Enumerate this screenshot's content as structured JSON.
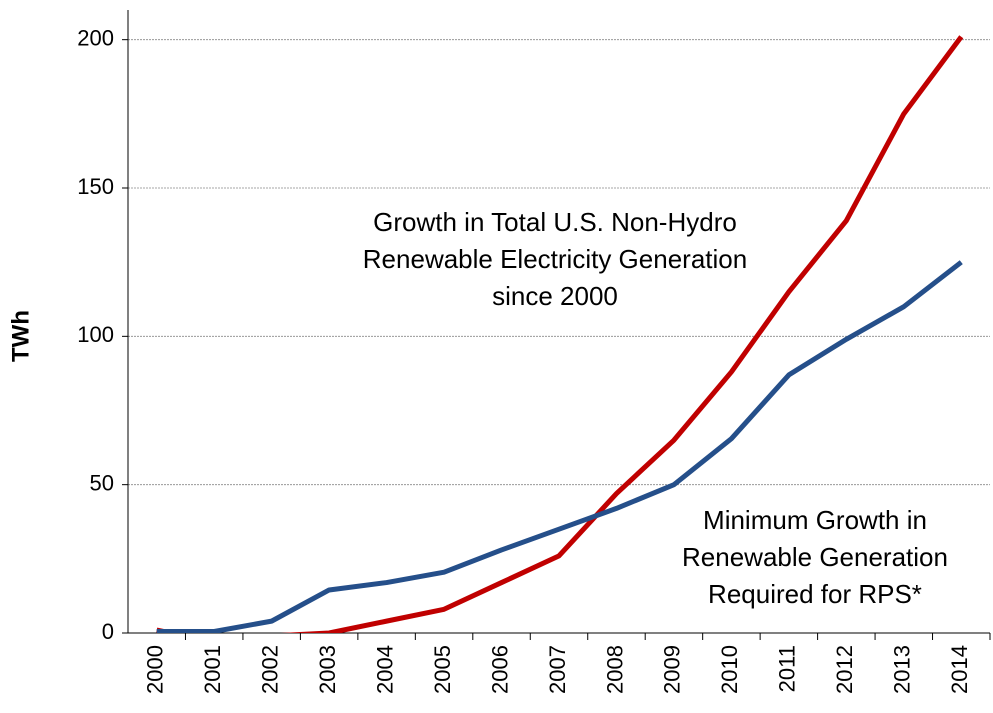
{
  "chart_data": {
    "type": "line",
    "y_label": "TWh",
    "categories": [
      "2000",
      "2001",
      "2002",
      "2003",
      "2004",
      "2005",
      "2006",
      "2007",
      "2008",
      "2009",
      "2010",
      "2011",
      "2012",
      "2013",
      "2014"
    ],
    "series": [
      {
        "color": "#c00000",
        "values": [
          1,
          -3,
          -1,
          0,
          4,
          8,
          17,
          26,
          47,
          65,
          88,
          115,
          139,
          175,
          201
        ]
      },
      {
        "color": "#254f8a",
        "values": [
          0.5,
          0.5,
          4,
          14.5,
          17,
          20.5,
          28,
          35,
          42,
          50,
          65.5,
          87,
          99,
          110,
          125
        ]
      }
    ],
    "annotations": [
      {
        "color": "#c00000",
        "lines": [
          "Growth in Total U.S. Non-Hydro",
          "Renewable Electricity Generation",
          "since 2000"
        ]
      },
      {
        "color": "#254f8a",
        "lines": [
          "Minimum Growth in",
          "Renewable Generation",
          "Required for RPS*"
        ]
      }
    ],
    "ylim": [
      0,
      210
    ],
    "yticks": [
      0,
      50,
      100,
      150,
      200
    ],
    "grid": true
  }
}
